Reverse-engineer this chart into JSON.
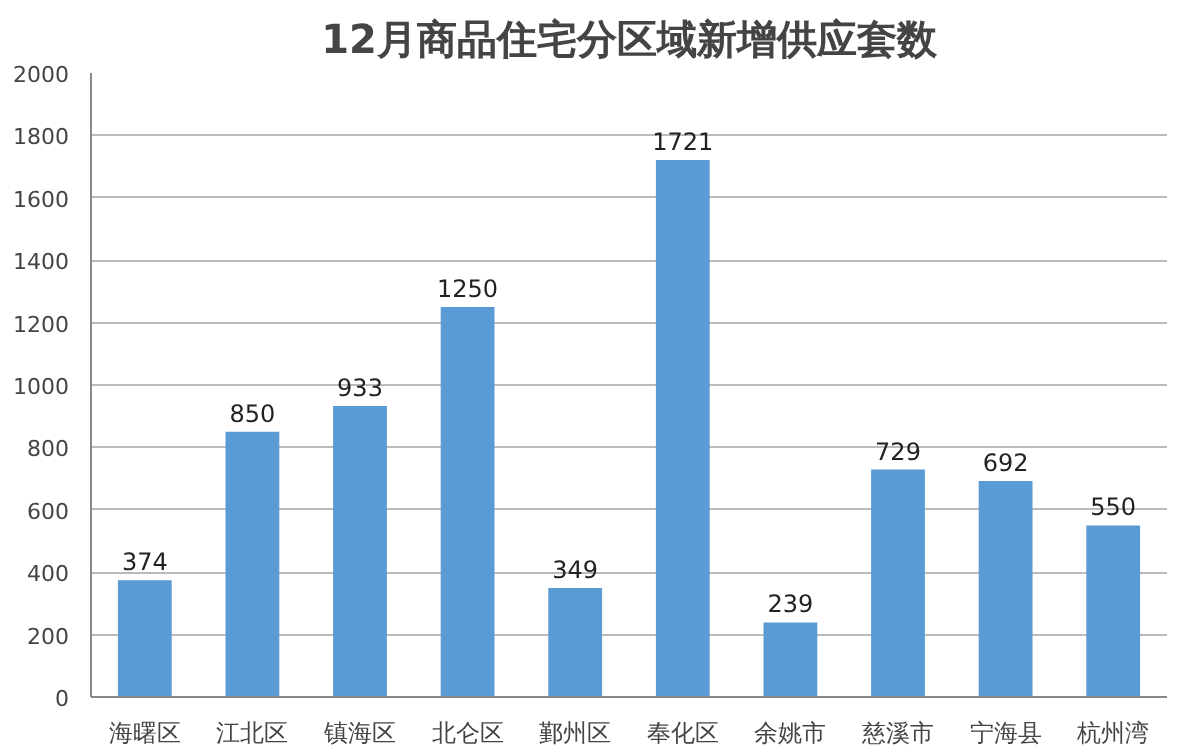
{
  "chart_data": {
    "type": "bar",
    "title": "12月商品住宅分区域新增供应套数",
    "categories": [
      "海曙区",
      "江北区",
      "镇海区",
      "北仑区",
      "鄞州区",
      "奉化区",
      "余姚市",
      "慈溪市",
      "宁海县",
      "杭州湾"
    ],
    "values": [
      374,
      850,
      933,
      1250,
      349,
      1721,
      239,
      729,
      692,
      550
    ],
    "color": "#5b9bd5",
    "ylim": [
      0,
      2000
    ],
    "yticks": [
      0,
      200,
      400,
      600,
      800,
      1000,
      1200,
      1400,
      1600,
      1800,
      2000
    ],
    "grid": "y",
    "data_labels": true
  }
}
